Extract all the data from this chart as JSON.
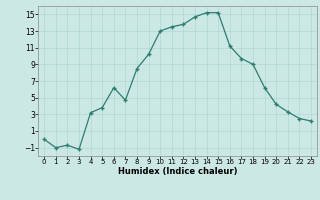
{
  "x": [
    0,
    1,
    2,
    3,
    4,
    5,
    6,
    7,
    8,
    9,
    10,
    11,
    12,
    13,
    14,
    15,
    16,
    17,
    18,
    19,
    20,
    21,
    22,
    23
  ],
  "y": [
    0.0,
    -1.0,
    -0.7,
    -1.2,
    3.2,
    3.8,
    6.2,
    4.7,
    8.5,
    10.2,
    13.0,
    13.5,
    13.8,
    14.7,
    15.2,
    15.2,
    11.2,
    9.7,
    9.0,
    6.2,
    4.2,
    3.3,
    2.5,
    2.2
  ],
  "xlabel": "Humidex (Indice chaleur)",
  "xlim": [
    -0.5,
    23.5
  ],
  "ylim": [
    -2.0,
    16.0
  ],
  "yticks": [
    -1,
    1,
    3,
    5,
    7,
    9,
    11,
    13,
    15
  ],
  "xticks": [
    0,
    1,
    2,
    3,
    4,
    5,
    6,
    7,
    8,
    9,
    10,
    11,
    12,
    13,
    14,
    15,
    16,
    17,
    18,
    19,
    20,
    21,
    22,
    23
  ],
  "line_color": "#2e7d6e",
  "marker": "+",
  "bg_color": "#cce8e4",
  "grid_color": "#b0d8d0"
}
